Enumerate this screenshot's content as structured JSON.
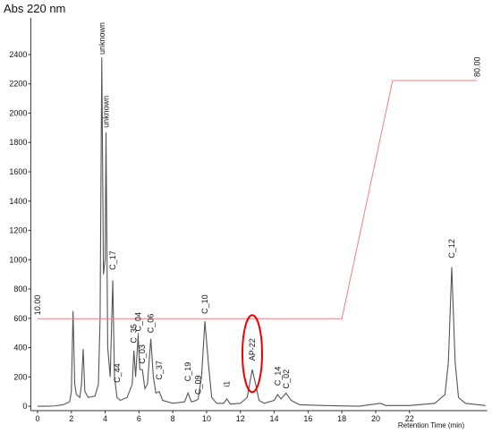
{
  "chart_data": {
    "type": "line",
    "ylabel": "Abs 220 nm",
    "xlabel": "Retention Time (min)",
    "xlim": [
      -0.4,
      26.6
    ],
    "xticks": [
      0,
      2,
      4,
      6,
      8,
      10,
      12,
      14,
      16,
      18,
      20,
      22
    ],
    "ylim": [
      -30,
      2650
    ],
    "yticks": [
      0,
      200,
      400,
      600,
      800,
      1000,
      1200,
      1400,
      1600,
      1800,
      2000,
      2200,
      2400
    ],
    "y2lim": [
      -17,
      98.4
    ],
    "grid": false,
    "series": [
      {
        "color": "#555555",
        "x": [
          0,
          0.5,
          1,
          1.5,
          1.9,
          2.0,
          2.1,
          2.2,
          2.3,
          2.5,
          2.6,
          2.7,
          2.8,
          3.0,
          3.4,
          3.6,
          3.7,
          3.8,
          3.9,
          4.0,
          4.05,
          4.15,
          4.3,
          4.45,
          4.55,
          4.7,
          4.9,
          5.3,
          5.6,
          5.7,
          5.8,
          5.95,
          6.05,
          6.2,
          6.35,
          6.5,
          6.7,
          6.85,
          7.0,
          7.2,
          7.4,
          8.0,
          8.7,
          8.9,
          9.1,
          9.4,
          9.5,
          9.7,
          9.9,
          10.1,
          10.3,
          10.6,
          11.0,
          11.2,
          11.4,
          12.0,
          12.4,
          12.7,
          12.9,
          13.1,
          13.4,
          14.0,
          14.2,
          14.4,
          14.7,
          15.0,
          15.5,
          17,
          19,
          20.3,
          20.6,
          22,
          23.5,
          24.1,
          24.3,
          24.5,
          24.7,
          24.9,
          25.3,
          26.5
        ],
        "values": [
          0,
          0,
          2,
          10,
          30,
          100,
          650,
          150,
          80,
          60,
          150,
          390,
          100,
          60,
          70,
          150,
          600,
          2380,
          900,
          1000,
          1870,
          400,
          200,
          860,
          200,
          60,
          40,
          60,
          150,
          380,
          200,
          480,
          250,
          250,
          120,
          150,
          460,
          200,
          90,
          100,
          40,
          20,
          30,
          90,
          30,
          40,
          50,
          200,
          580,
          300,
          60,
          20,
          20,
          50,
          15,
          20,
          60,
          250,
          150,
          40,
          20,
          40,
          80,
          50,
          90,
          40,
          10,
          5,
          0,
          20,
          5,
          5,
          20,
          80,
          300,
          950,
          300,
          60,
          20,
          5
        ]
      },
      {
        "color": "#f08080",
        "axis": "y2",
        "x": [
          0,
          18,
          21,
          26
        ],
        "values": [
          10,
          10,
          80,
          80
        ],
        "value_labels": [
          "10.00",
          null,
          null,
          "80.00"
        ]
      }
    ],
    "annotations": [
      {
        "text": "unknown",
        "x": 3.8,
        "y": 2400
      },
      {
        "text": "unknown",
        "x": 4.05,
        "y": 1900
      },
      {
        "text": "C_17",
        "x": 4.45,
        "y": 930
      },
      {
        "text": "C_44",
        "x": 4.7,
        "y": 160
      },
      {
        "text": "C_35",
        "x": 5.7,
        "y": 430
      },
      {
        "text": "C_04",
        "x": 5.95,
        "y": 510
      },
      {
        "text": "C_03",
        "x": 6.2,
        "y": 290
      },
      {
        "text": "C_06",
        "x": 6.7,
        "y": 500
      },
      {
        "text": "C_37",
        "x": 7.2,
        "y": 180
      },
      {
        "text": "C_19",
        "x": 8.9,
        "y": 170
      },
      {
        "text": "C_09",
        "x": 9.5,
        "y": 80
      },
      {
        "text": "C_10",
        "x": 9.9,
        "y": 630
      },
      {
        "text": "i1",
        "x": 11.2,
        "y": 130
      },
      {
        "text": "AP-22",
        "x": 12.7,
        "y": 310,
        "circled": true
      },
      {
        "text": "C_14",
        "x": 14.2,
        "y": 140
      },
      {
        "text": "C_02",
        "x": 14.7,
        "y": 120
      },
      {
        "text": "C_12",
        "x": 24.5,
        "y": 1010
      }
    ]
  }
}
